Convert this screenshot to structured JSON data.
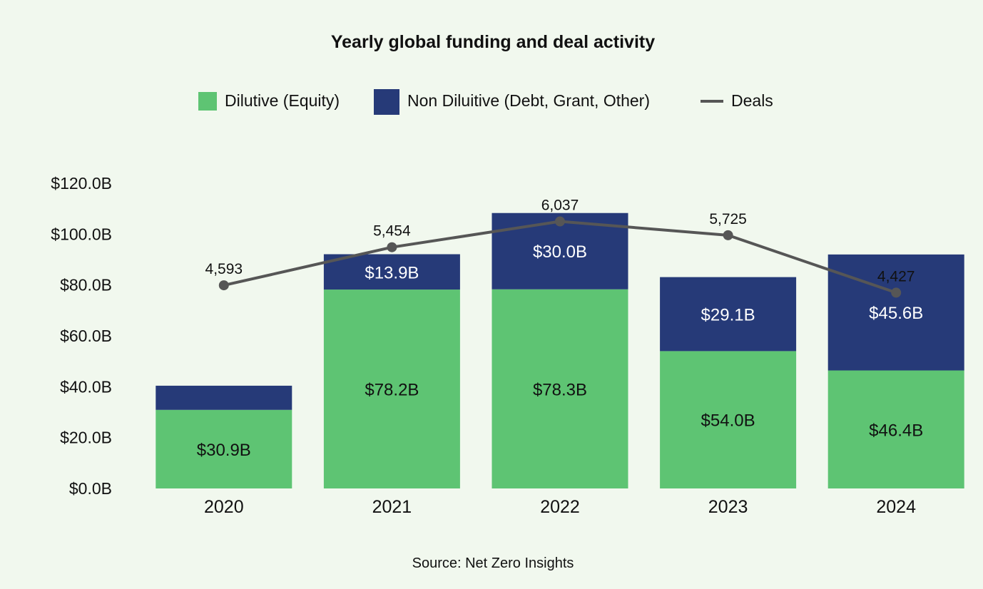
{
  "colors": {
    "background": "#f1f8ee",
    "dilutive": "#5ec473",
    "non_dilutive": "#263a78",
    "deals_line": "#565656"
  },
  "chart_data": {
    "type": "bar",
    "stacked": true,
    "title": "Yearly global funding and deal activity",
    "categories": [
      "2020",
      "2021",
      "2022",
      "2023",
      "2024"
    ],
    "series": [
      {
        "name": "Dilutive (Equity)",
        "values": [
          30.9,
          78.2,
          78.3,
          54.0,
          46.4
        ],
        "labels": [
          "$30.9B",
          "$78.2B",
          "$78.3B",
          "$54.0B",
          "$46.4B"
        ]
      },
      {
        "name": "Non Diluitive (Debt, Grant, Other)",
        "values": [
          9.5,
          13.9,
          30.0,
          29.1,
          45.6
        ],
        "labels": [
          "",
          "$13.9B",
          "$30.0B",
          "$29.1B",
          "$45.6B"
        ]
      }
    ],
    "line_series": {
      "name": "Deals",
      "values": [
        4593,
        5454,
        6037,
        5725,
        4427
      ],
      "labels": [
        "4,593",
        "5,454",
        "6,037",
        "5,725",
        "4,427"
      ],
      "secondary_axis_range": [
        0,
        6900
      ],
      "secondary_axis_visible": false
    },
    "ylim": [
      0,
      120
    ],
    "yticks": [
      0,
      20,
      40,
      60,
      80,
      100,
      120
    ],
    "ytick_labels": [
      "$0.0B",
      "$20.0B",
      "$40.0B",
      "$60.0B",
      "$80.0B",
      "$100.0B",
      "$120.0B"
    ],
    "xlabel": "",
    "ylabel": "",
    "legend": [
      "Dilutive (Equity)",
      "Non Diluitive (Debt, Grant, Other)",
      "Deals"
    ],
    "legend_position": "top",
    "grid": false
  },
  "source": "Source: Net Zero Insights"
}
